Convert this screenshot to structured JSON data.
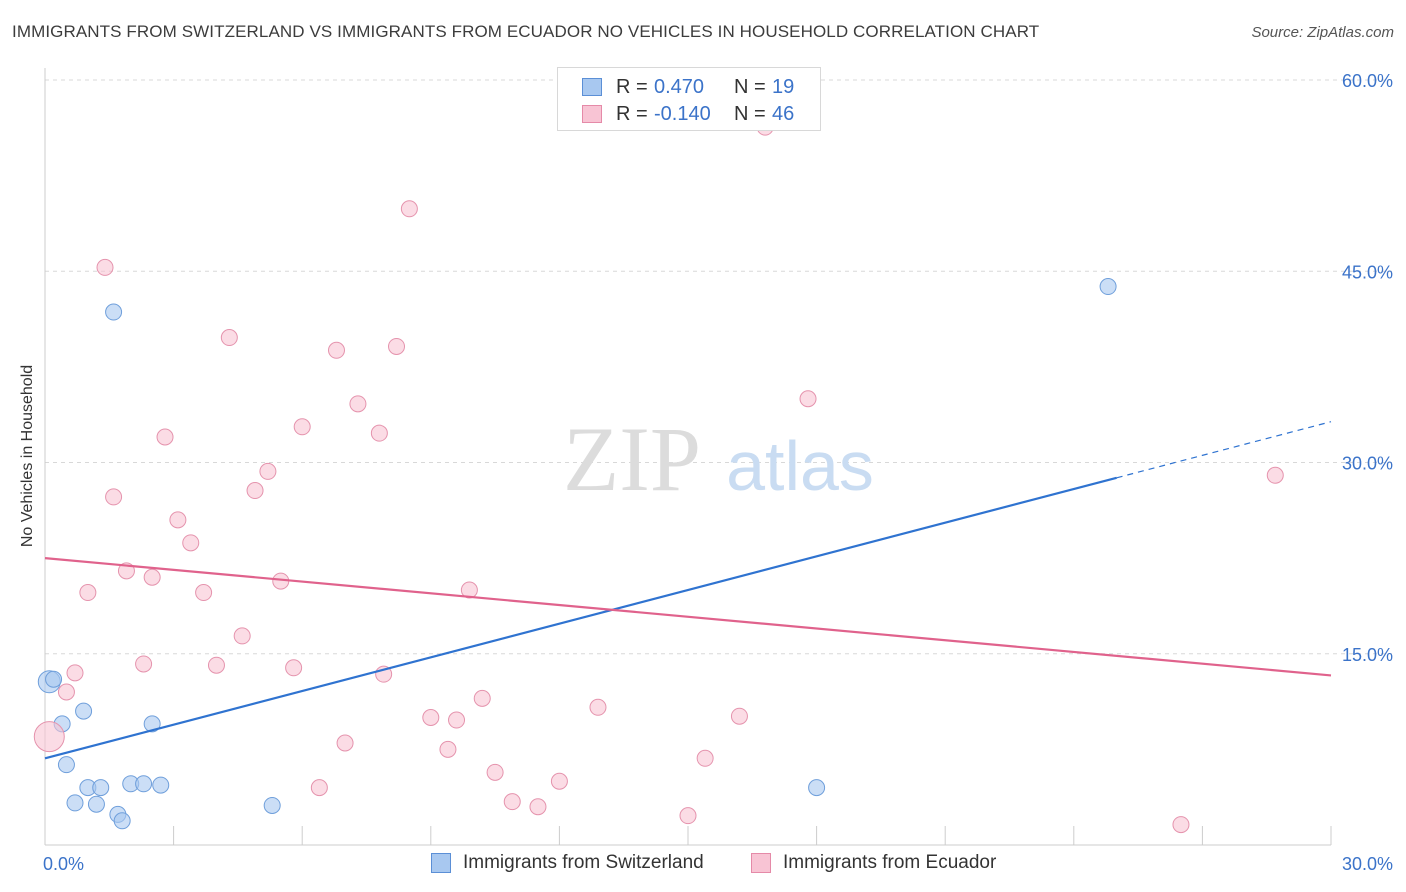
{
  "title": "IMMIGRANTS FROM SWITZERLAND VS IMMIGRANTS FROM ECUADOR NO VEHICLES IN HOUSEHOLD CORRELATION CHART",
  "source": "Source: ZipAtlas.com",
  "watermark": {
    "zip": "ZIP",
    "atlas": "atlas"
  },
  "legend": {
    "rows": [
      {
        "r_label": "R =",
        "r_value": "0.470",
        "n_label": "N =",
        "n_value": "19",
        "color": "#a8c8f0",
        "border": "#5b8fd6"
      },
      {
        "r_label": "R =",
        "r_value": "-0.140",
        "n_label": "N =",
        "n_value": "46",
        "color": "#f8c4d4",
        "border": "#e58aa8"
      }
    ]
  },
  "bottom_legend": {
    "switzerland": "Immigrants from Switzerland",
    "ecuador": "Immigrants from Ecuador"
  },
  "colors": {
    "switzerland_fill": "#a8c8f0",
    "switzerland_stroke": "#6f9fdb",
    "switzerland_line": "#2f73d0",
    "ecuador_fill": "#f8c4d4",
    "ecuador_stroke": "#e593ad",
    "ecuador_line": "#e0628c",
    "tick_label": "#3b73c9",
    "grid": "#d8d8d8"
  },
  "chart_data": {
    "type": "scatter",
    "title": "IMMIGRANTS FROM SWITZERLAND VS IMMIGRANTS FROM ECUADOR NO VEHICLES IN HOUSEHOLD CORRELATION CHART",
    "xlabel": "",
    "ylabel": "No Vehicles in Household",
    "xlim": [
      0,
      30
    ],
    "ylim": [
      0,
      60
    ],
    "x_tick_labels": [
      "0.0%",
      "30.0%"
    ],
    "y_ticks": [
      15,
      30,
      45,
      60
    ],
    "y_tick_labels": [
      "15.0%",
      "30.0%",
      "45.0%",
      "60.0%"
    ],
    "grid": true,
    "legend_placement": "top-center",
    "series": [
      {
        "name": "Immigrants from Switzerland",
        "points": [
          [
            0.1,
            12.8
          ],
          [
            0.2,
            13.0
          ],
          [
            0.4,
            9.5
          ],
          [
            0.5,
            6.3
          ],
          [
            0.7,
            3.3
          ],
          [
            0.9,
            10.5
          ],
          [
            1.0,
            4.5
          ],
          [
            1.2,
            3.2
          ],
          [
            1.3,
            4.5
          ],
          [
            1.6,
            41.8
          ],
          [
            1.7,
            2.4
          ],
          [
            1.8,
            1.9
          ],
          [
            2.0,
            4.8
          ],
          [
            2.3,
            4.8
          ],
          [
            2.5,
            9.5
          ],
          [
            2.7,
            4.7
          ],
          [
            5.3,
            3.1
          ],
          [
            18.0,
            4.5
          ],
          [
            24.8,
            43.8
          ]
        ],
        "trend": {
          "x": [
            0,
            25
          ],
          "y": [
            6.8,
            28.8
          ],
          "dashed_extension": {
            "x": [
              25,
              30
            ],
            "y": [
              28.8,
              33.2
            ]
          }
        }
      },
      {
        "name": "Immigrants from Ecuador",
        "points": [
          [
            0.1,
            8.5
          ],
          [
            0.5,
            12.0
          ],
          [
            0.7,
            13.5
          ],
          [
            1.0,
            19.8
          ],
          [
            1.4,
            45.3
          ],
          [
            1.6,
            27.3
          ],
          [
            1.9,
            21.5
          ],
          [
            2.3,
            14.2
          ],
          [
            2.5,
            21.0
          ],
          [
            2.8,
            32.0
          ],
          [
            3.1,
            25.5
          ],
          [
            3.4,
            23.7
          ],
          [
            3.7,
            19.8
          ],
          [
            4.0,
            14.1
          ],
          [
            4.3,
            39.8
          ],
          [
            4.6,
            16.4
          ],
          [
            4.9,
            27.8
          ],
          [
            5.2,
            29.3
          ],
          [
            5.5,
            20.7
          ],
          [
            5.8,
            13.9
          ],
          [
            6.0,
            32.8
          ],
          [
            6.4,
            4.5
          ],
          [
            6.8,
            38.8
          ],
          [
            7.0,
            8.0
          ],
          [
            7.3,
            34.6
          ],
          [
            7.8,
            32.3
          ],
          [
            7.9,
            13.4
          ],
          [
            8.2,
            39.1
          ],
          [
            8.5,
            49.9
          ],
          [
            9.0,
            10.0
          ],
          [
            9.4,
            7.5
          ],
          [
            9.6,
            9.8
          ],
          [
            9.9,
            20.0
          ],
          [
            10.2,
            11.5
          ],
          [
            10.5,
            5.7
          ],
          [
            10.9,
            3.4
          ],
          [
            11.5,
            3.0
          ],
          [
            12.0,
            5.0
          ],
          [
            12.9,
            10.8
          ],
          [
            15.0,
            2.3
          ],
          [
            15.4,
            6.8
          ],
          [
            16.2,
            10.1
          ],
          [
            16.8,
            56.3
          ],
          [
            17.8,
            35.0
          ],
          [
            26.5,
            1.6
          ],
          [
            28.7,
            29.0
          ]
        ],
        "trend": {
          "x": [
            0,
            30
          ],
          "y": [
            22.5,
            13.3
          ]
        }
      }
    ]
  }
}
